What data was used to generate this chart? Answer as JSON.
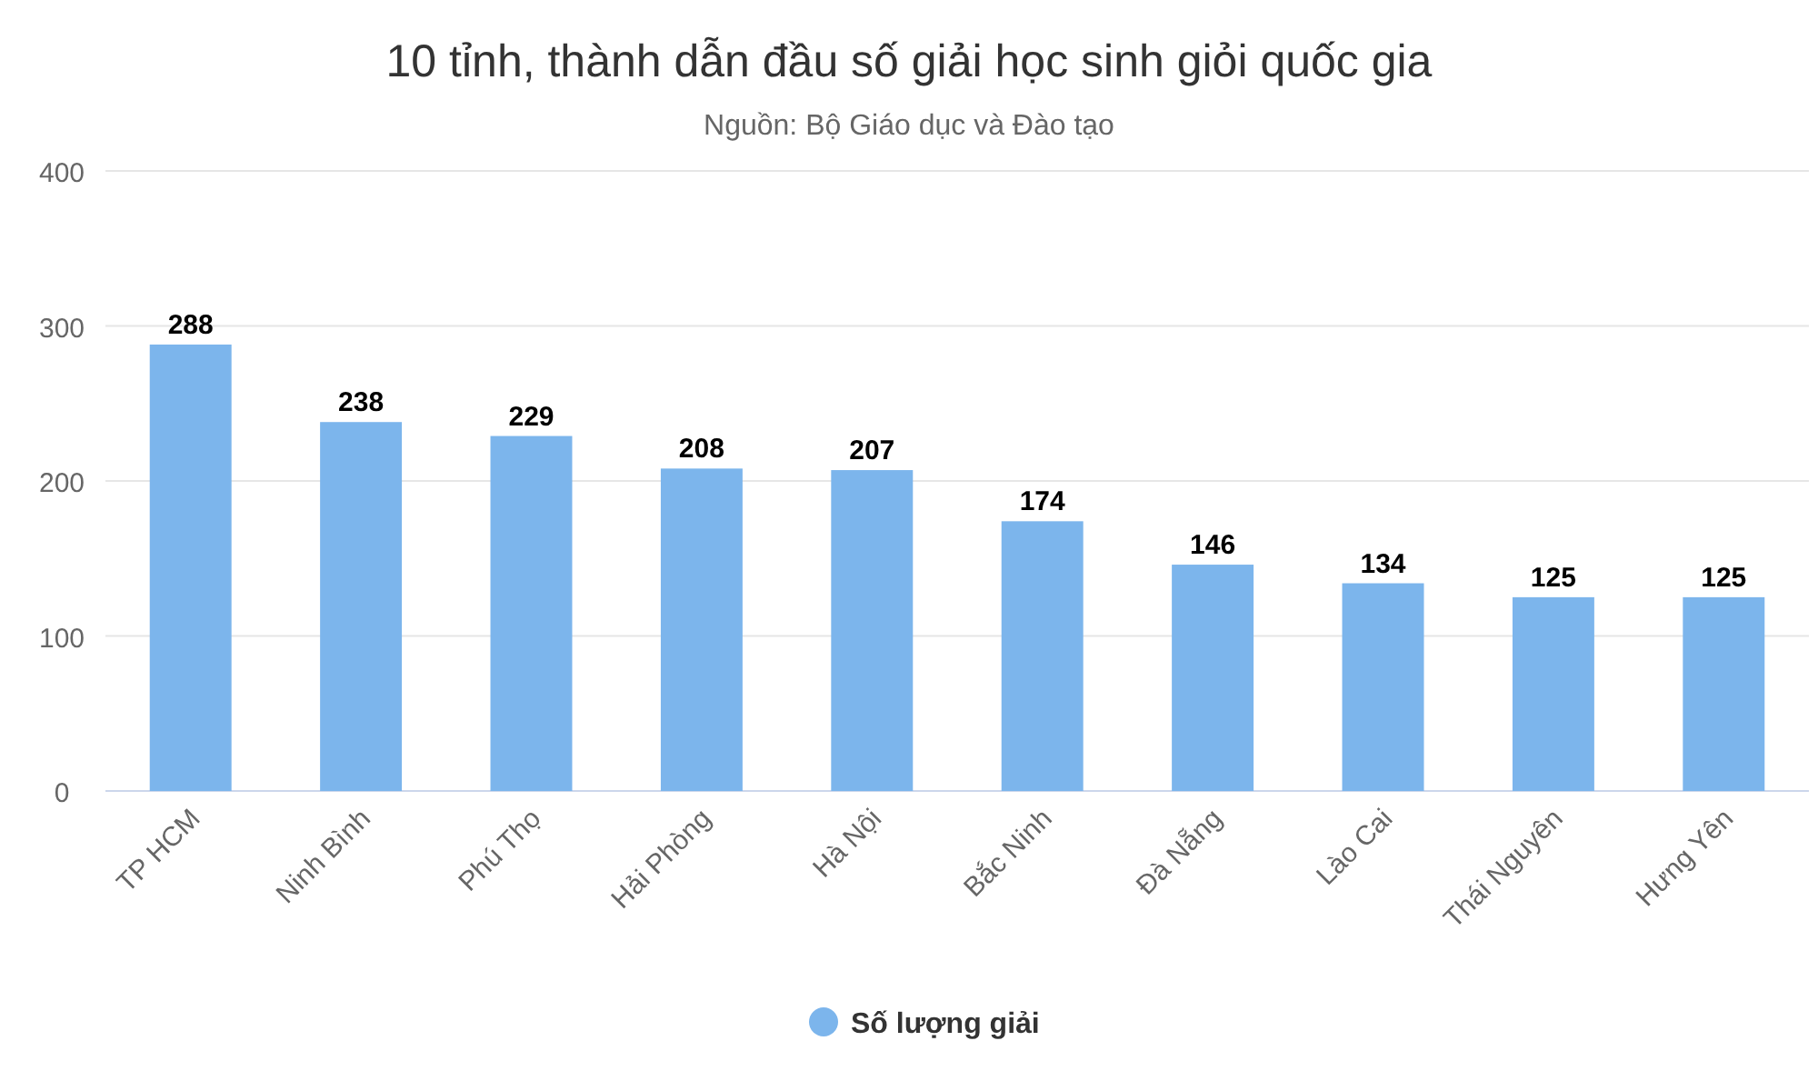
{
  "chart_data": {
    "type": "bar",
    "title": "10 tỉnh, thành dẫn đầu số giải học sinh giỏi quốc gia",
    "subtitle": "Nguồn: Bộ Giáo dục và Đào tạo",
    "categories": [
      "TP HCM",
      "Ninh Bình",
      "Phú Thọ",
      "Hải Phòng",
      "Hà Nội",
      "Bắc Ninh",
      "Đà Nẵng",
      "Lào Cai",
      "Thái Nguyên",
      "Hưng Yên"
    ],
    "series": [
      {
        "name": "Số lượng giải",
        "color": "#7cb5ec",
        "values": [
          288,
          238,
          229,
          208,
          207,
          174,
          146,
          134,
          125,
          125
        ]
      }
    ],
    "ylim": [
      0,
      400
    ],
    "yticks": [
      0,
      100,
      200,
      300,
      400
    ],
    "grid": "y",
    "legend": "bottom",
    "data_labels": true
  }
}
